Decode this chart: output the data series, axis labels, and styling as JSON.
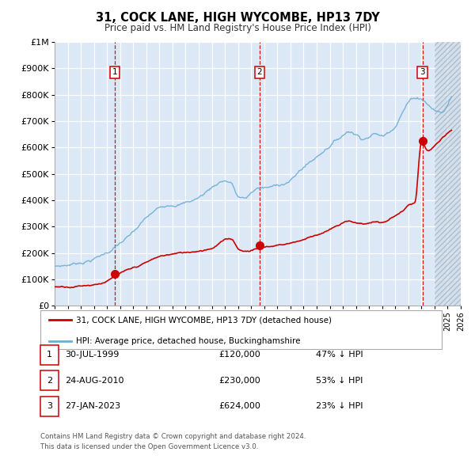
{
  "title": "31, COCK LANE, HIGH WYCOMBE, HP13 7DY",
  "subtitle": "Price paid vs. HM Land Registry's House Price Index (HPI)",
  "legend_line1": "31, COCK LANE, HIGH WYCOMBE, HP13 7DY (detached house)",
  "legend_line2": "HPI: Average price, detached house, Buckinghamshire",
  "transactions": [
    {
      "num": 1,
      "date_label": "30-JUL-1999",
      "year": 1999.58,
      "price": 120000,
      "pct": "47% ↓ HPI"
    },
    {
      "num": 2,
      "date_label": "24-AUG-2010",
      "year": 2010.65,
      "price": 230000,
      "pct": "53% ↓ HPI"
    },
    {
      "num": 3,
      "date_label": "27-JAN-2023",
      "year": 2023.08,
      "price": 624000,
      "pct": "23% ↓ HPI"
    }
  ],
  "hpi_color": "#6baed6",
  "price_color": "#cc0000",
  "vline_color": "#cc0000",
  "background_color": "#ffffff",
  "plot_bg_color": "#dce8f5",
  "grid_color": "#ffffff",
  "hatch_color": "#c8d8e8",
  "xmin": 1995,
  "xmax": 2026,
  "ymin": 0,
  "ymax": 1000000,
  "yticks": [
    0,
    100000,
    200000,
    300000,
    400000,
    500000,
    600000,
    700000,
    800000,
    900000,
    1000000
  ],
  "ylabels": [
    "£0",
    "£100K",
    "£200K",
    "£300K",
    "£400K",
    "£500K",
    "£600K",
    "£700K",
    "£800K",
    "£900K",
    "£1M"
  ],
  "footer_line1": "Contains HM Land Registry data © Crown copyright and database right 2024.",
  "footer_line2": "This data is licensed under the Open Government Licence v3.0."
}
